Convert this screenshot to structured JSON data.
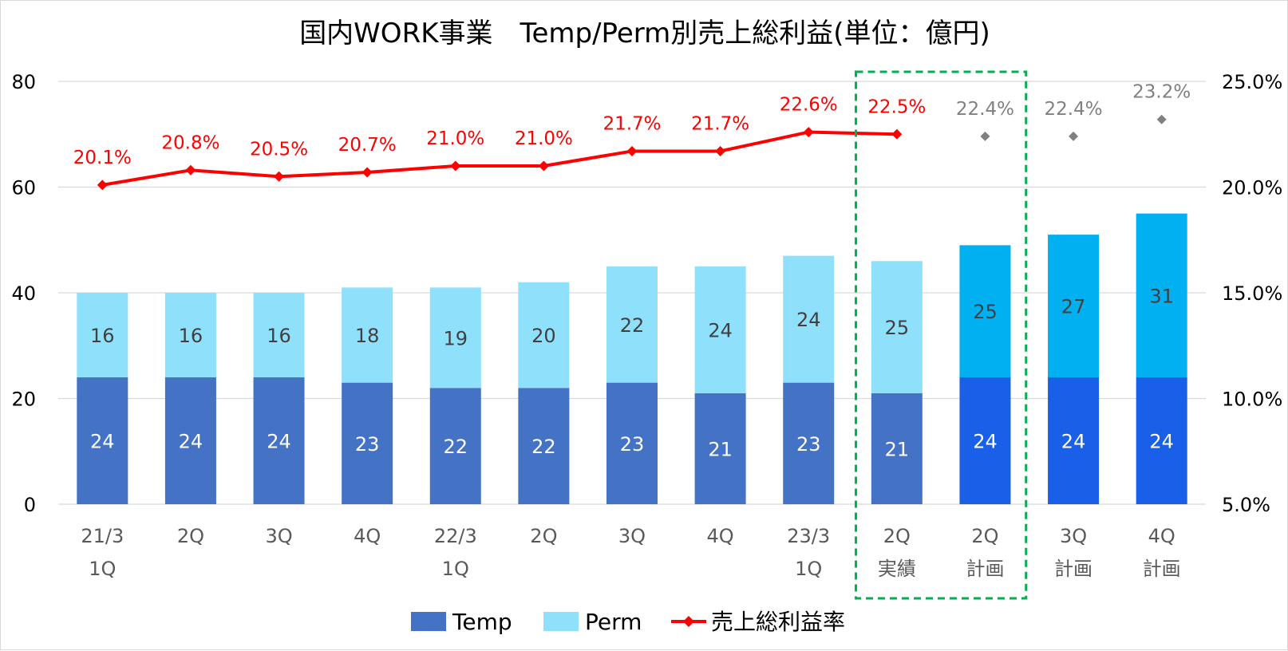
{
  "chart_data": {
    "type": "bar",
    "stacked": true,
    "title": "国内WORK事業　Temp/Perm別売上総利益(単位：億円)",
    "categories": [
      [
        "21/3",
        "1Q"
      ],
      [
        "2Q"
      ],
      [
        "3Q"
      ],
      [
        "4Q"
      ],
      [
        "22/3",
        "1Q"
      ],
      [
        "2Q"
      ],
      [
        "3Q"
      ],
      [
        "4Q"
      ],
      [
        "23/3",
        "1Q"
      ],
      [
        "2Q",
        "実績"
      ],
      [
        "2Q",
        "計画"
      ],
      [
        "3Q",
        "計画"
      ],
      [
        "4Q",
        "計画"
      ]
    ],
    "y_left": {
      "min": 0,
      "max": 80,
      "ticks": [
        0,
        20,
        40,
        60,
        80
      ],
      "tick_labels": [
        "0",
        "20",
        "40",
        "60",
        "80"
      ]
    },
    "y_right": {
      "min": 5,
      "max": 25,
      "ticks": [
        5,
        10,
        15,
        20,
        25
      ],
      "tick_labels": [
        "5.0%",
        "10.0%",
        "15.0%",
        "20.0%",
        "25.0%"
      ]
    },
    "gridlines": true,
    "series": [
      {
        "name": "Temp",
        "kind": "bar",
        "axis": "left",
        "values": [
          24,
          24,
          24,
          23,
          22,
          22,
          23,
          21,
          23,
          21,
          24,
          24,
          24
        ],
        "labels": [
          "24",
          "24",
          "24",
          "23",
          "22",
          "22",
          "23",
          "21",
          "23",
          "21",
          "24",
          "24",
          "24"
        ],
        "color": "#4472c4",
        "plan_color": "#1a5fe8",
        "label_color": "#ffffff"
      },
      {
        "name": "Perm",
        "kind": "bar",
        "axis": "left",
        "values": [
          16,
          16,
          16,
          18,
          19,
          20,
          22,
          24,
          24,
          25,
          25,
          27,
          31
        ],
        "labels": [
          "16",
          "16",
          "16",
          "18",
          "19",
          "20",
          "22",
          "24",
          "24",
          "25",
          "25",
          "27",
          "31"
        ],
        "color": "#8fe0fb",
        "plan_color": "#00b0f0",
        "label_color": "#404040"
      },
      {
        "name": "売上総利益率",
        "kind": "line",
        "axis": "right",
        "values": [
          20.1,
          20.8,
          20.5,
          20.7,
          21.0,
          21.0,
          21.7,
          21.7,
          22.6,
          22.5,
          22.4,
          22.4,
          23.2
        ],
        "labels": [
          "20.1%",
          "20.8%",
          "20.5%",
          "20.7%",
          "21.0%",
          "21.0%",
          "21.7%",
          "21.7%",
          "22.6%",
          "22.5%",
          "22.4%",
          "22.4%",
          "23.2%"
        ],
        "color": "#ff0000",
        "plan_color": "#808080",
        "line_through_index": 9
      }
    ],
    "plan_start_index": 10,
    "highlight": {
      "from_index": 9,
      "to_index": 10,
      "color": "#00b050",
      "style": "dashed"
    },
    "legend": {
      "placement": "bottom",
      "items": [
        {
          "name": "Temp",
          "marker": "square",
          "color": "#4472c4"
        },
        {
          "name": "Perm",
          "marker": "square",
          "color": "#8fe0fb"
        },
        {
          "name": "売上総利益率",
          "marker": "line-diamond",
          "color": "#ff0000"
        }
      ]
    }
  }
}
